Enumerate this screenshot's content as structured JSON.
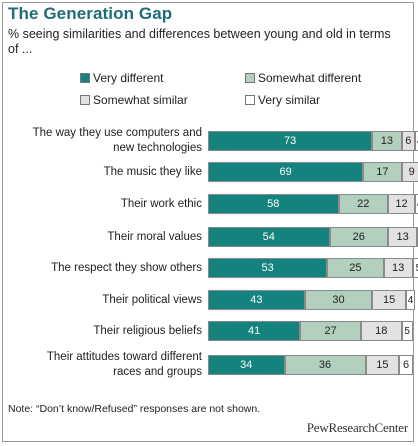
{
  "title": "The Generation Gap",
  "subtitle": "% seeing similarities and differences between young and old in terms of ...",
  "note": "Note: “Don’t know/Refused” responses are not shown.",
  "logo_text": "PewResearchCenter",
  "colors": {
    "very_different": "#14827d",
    "somewhat_different": "#b3cfbe",
    "somewhat_similar": "#e2e2e2",
    "very_similar": "#ffffff",
    "title": "#1e6e73"
  },
  "chart_data": {
    "type": "bar",
    "orientation": "horizontal",
    "stacked": true,
    "title": "The Generation Gap",
    "subtitle": "% seeing similarities and differences between young and old in terms of ...",
    "legend_position": "top",
    "categories": [
      "The way they use computers and new technologies",
      "The music they like",
      "Their work ethic",
      "Their moral values",
      "The respect they show others",
      "Their political views",
      "Their religious beliefs",
      "Their attitudes toward different races and groups"
    ],
    "category_lines": [
      [
        "The way they use computers and",
        "new technologies"
      ],
      [
        "The music they like"
      ],
      [
        "Their work ethic"
      ],
      [
        "Their moral values"
      ],
      [
        "The respect they show others"
      ],
      [
        "Their political views"
      ],
      [
        "Their religious beliefs"
      ],
      [
        "Their attitudes toward different",
        "races and groups"
      ]
    ],
    "series": [
      {
        "name": "Very different",
        "values": [
          73,
          69,
          58,
          54,
          53,
          43,
          41,
          34
        ]
      },
      {
        "name": "Somewhat different",
        "values": [
          13,
          17,
          22,
          26,
          25,
          30,
          27,
          36
        ]
      },
      {
        "name": "Somewhat similar",
        "values": [
          6,
          9,
          12,
          13,
          13,
          15,
          18,
          15
        ]
      },
      {
        "name": "Very similar",
        "values": [
          4,
          3,
          4,
          3,
          5,
          4,
          5,
          6
        ]
      }
    ],
    "xlim": [
      0,
      100
    ]
  }
}
